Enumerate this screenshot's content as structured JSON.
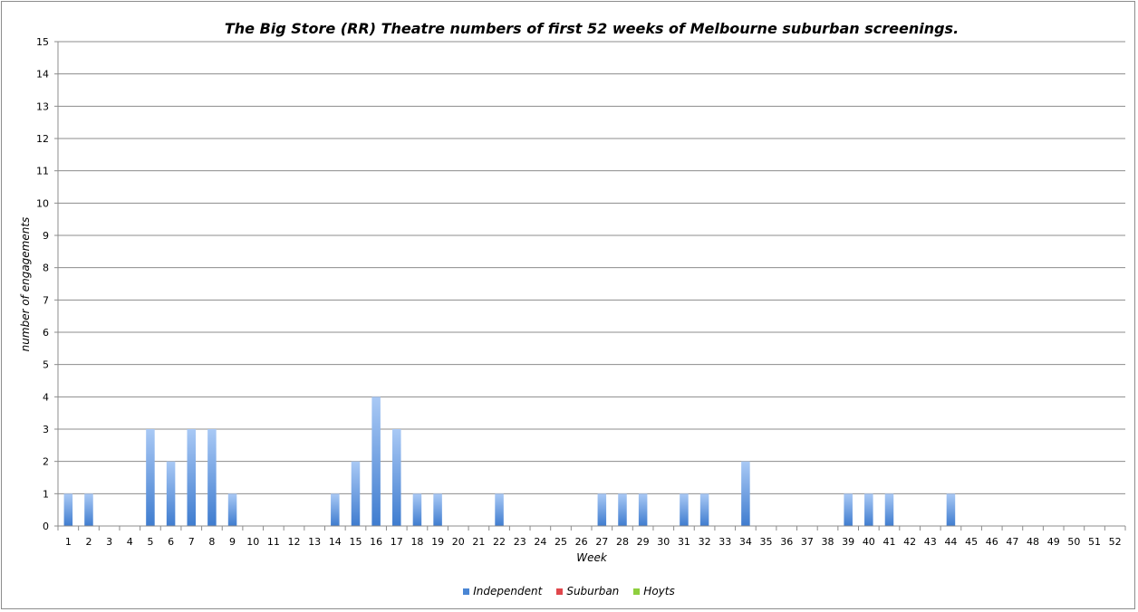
{
  "chart_data": {
    "type": "bar",
    "title": "The Big Store (RR) Theatre numbers of first 52 weeks of Melbourne suburban screenings.",
    "xlabel": "Week",
    "ylabel": "number of engagements",
    "ylim": [
      0,
      15
    ],
    "yticks": [
      "0",
      "1",
      "2",
      "3",
      "4",
      "5",
      "6",
      "7",
      "8",
      "9",
      "10",
      "11",
      "12",
      "13",
      "14",
      "15"
    ],
    "categories": [
      "1",
      "2",
      "3",
      "4",
      "5",
      "6",
      "7",
      "8",
      "9",
      "10",
      "11",
      "12",
      "13",
      "14",
      "15",
      "16",
      "17",
      "18",
      "19",
      "20",
      "21",
      "22",
      "23",
      "24",
      "25",
      "26",
      "27",
      "28",
      "29",
      "30",
      "31",
      "32",
      "33",
      "34",
      "35",
      "36",
      "37",
      "38",
      "39",
      "40",
      "41",
      "42",
      "43",
      "44",
      "45",
      "46",
      "47",
      "48",
      "49",
      "50",
      "51",
      "52"
    ],
    "series": [
      {
        "name": "Independent",
        "color": "#4a86d4",
        "values": [
          1,
          1,
          0,
          0,
          3,
          2,
          3,
          3,
          1,
          0,
          0,
          0,
          0,
          1,
          2,
          4,
          3,
          1,
          1,
          0,
          0,
          1,
          0,
          0,
          0,
          0,
          1,
          1,
          1,
          0,
          1,
          1,
          0,
          2,
          0,
          0,
          0,
          0,
          1,
          1,
          1,
          0,
          0,
          1,
          0,
          0,
          0,
          0,
          0,
          0,
          0,
          0
        ]
      },
      {
        "name": "Suburban",
        "color": "#e0474c",
        "values": [
          0,
          0,
          0,
          0,
          0,
          0,
          0,
          0,
          0,
          0,
          0,
          0,
          0,
          0,
          0,
          0,
          0,
          0,
          0,
          0,
          0,
          0,
          0,
          0,
          0,
          0,
          0,
          0,
          0,
          0,
          0,
          0,
          0,
          0,
          0,
          0,
          0,
          0,
          0,
          0,
          0,
          0,
          0,
          0,
          0,
          0,
          0,
          0,
          0,
          0,
          0,
          0
        ]
      },
      {
        "name": "Hoyts",
        "color": "#8ecf3e",
        "values": [
          0,
          0,
          0,
          0,
          0,
          0,
          0,
          0,
          0,
          0,
          0,
          0,
          0,
          0,
          0,
          0,
          0,
          0,
          0,
          0,
          0,
          0,
          0,
          0,
          0,
          0,
          0,
          0,
          0,
          0,
          0,
          0,
          0,
          0,
          0,
          0,
          0,
          0,
          0,
          0,
          0,
          0,
          0,
          0,
          0,
          0,
          0,
          0,
          0,
          0,
          0,
          0
        ]
      }
    ],
    "grid": true,
    "legend_position": "bottom"
  }
}
